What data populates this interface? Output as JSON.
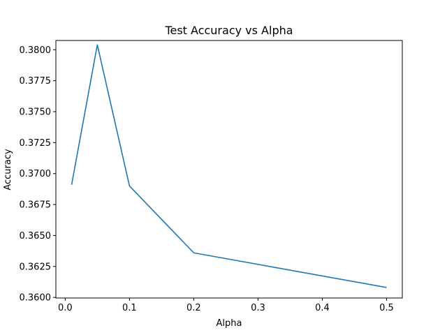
{
  "chart_data": {
    "type": "line",
    "title": "Test Accuracy vs Alpha",
    "xlabel": "Alpha",
    "ylabel": "Accuracy",
    "xlim": [
      -0.0145,
      0.5245
    ],
    "ylim": [
      0.35995,
      0.38075
    ],
    "xticks": [
      0,
      0.1,
      0.2,
      0.3,
      0.4,
      0.5
    ],
    "xtick_labels": [
      "0.0",
      "0.1",
      "0.2",
      "0.3",
      "0.4",
      "0.5"
    ],
    "yticks": [
      0.36,
      0.3625,
      0.365,
      0.3675,
      0.37,
      0.3725,
      0.375,
      0.3775,
      0.38
    ],
    "ytick_labels": [
      "0.3600",
      "0.3625",
      "0.3650",
      "0.3675",
      "0.3700",
      "0.3725",
      "0.3750",
      "0.3775",
      "0.3800"
    ],
    "grid": false,
    "series": [
      {
        "color": "#1f77b4",
        "x": [
          0.01,
          0.05,
          0.1,
          0.2,
          0.5
        ],
        "y": [
          0.3691,
          0.3804,
          0.369,
          0.3636,
          0.3608
        ]
      }
    ]
  }
}
